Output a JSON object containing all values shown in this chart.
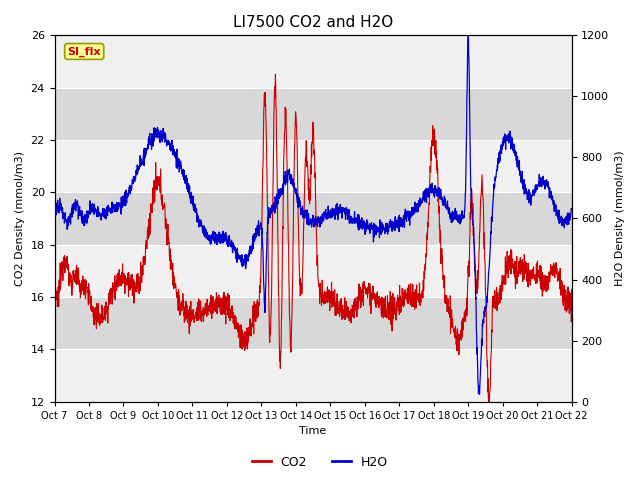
{
  "title": "LI7500 CO2 and H2O",
  "xlabel": "Time",
  "ylabel_left": "CO2 Density (mmol/m3)",
  "ylabel_right": "H2O Density (mmol/m3)",
  "ylim_left": [
    12,
    26
  ],
  "ylim_right": [
    0,
    1200
  ],
  "yticks_left": [
    12,
    14,
    16,
    18,
    20,
    22,
    24,
    26
  ],
  "yticks_right": [
    0,
    200,
    400,
    600,
    800,
    1000,
    1200
  ],
  "xtick_labels": [
    "Oct 7",
    "Oct 8",
    "Oct 9",
    "Oct 10",
    "Oct 11",
    "Oct 12",
    "Oct 13",
    "Oct 14",
    "Oct 15",
    "Oct 16",
    "Oct 17",
    "Oct 18",
    "Oct 19",
    "Oct 20",
    "Oct 21",
    "Oct 22"
  ],
  "legend_label_co2": "CO2",
  "legend_label_h2o": "H2O",
  "co2_color": "#cc0000",
  "h2o_color": "#0000cc",
  "plot_bg_color": "#e8e8e8",
  "band_light": "#f0f0f0",
  "band_dark": "#d8d8d8",
  "annotation_text": "SI_flx",
  "annotation_bg": "#ffff99",
  "annotation_border": "#999900",
  "annotation_text_color": "#cc0000",
  "grid_color": "#ffffff",
  "title_fontsize": 11,
  "label_fontsize": 8,
  "tick_fontsize": 8
}
